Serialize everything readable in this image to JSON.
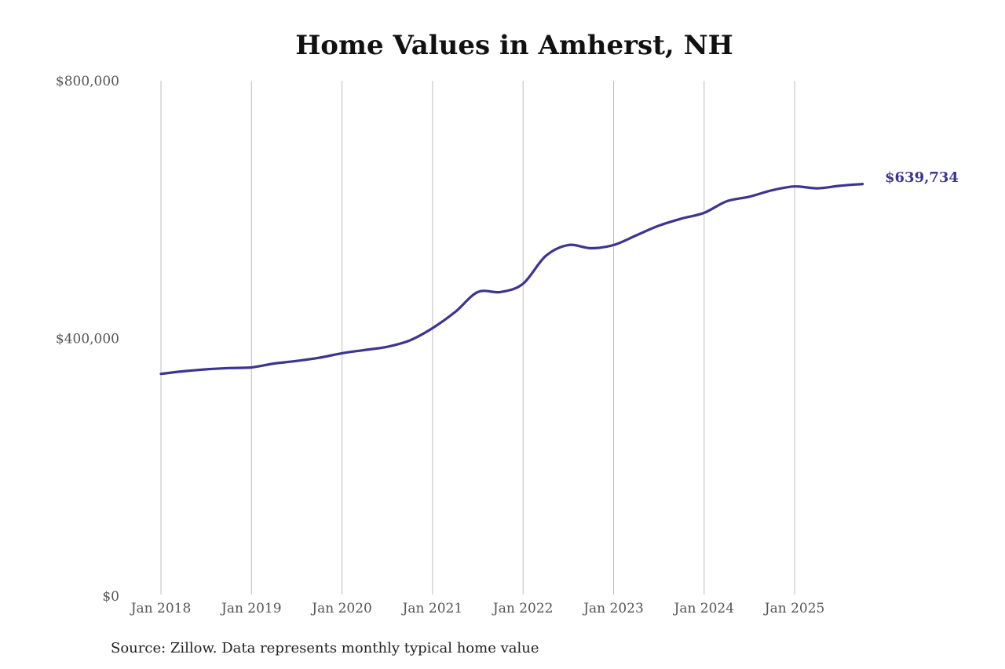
{
  "chart_data": {
    "type": "line",
    "title": "Home Values in Amherst, NH",
    "xlabel": "",
    "ylabel": "",
    "ylim": [
      0,
      800000
    ],
    "yticks": [
      0,
      400000,
      800000
    ],
    "ytick_labels": [
      "$0",
      "$400,000",
      "$800,000"
    ],
    "xtick_labels": [
      "Jan 2018",
      "Jan 2019",
      "Jan 2020",
      "Jan 2021",
      "Jan 2022",
      "Jan 2023",
      "Jan 2024",
      "Jan 2025"
    ],
    "grid": {
      "vertical": true,
      "horizontal": false
    },
    "legend": null,
    "line_color": "#3b3494",
    "series": [
      {
        "name": "Typical home value",
        "x": [
          "2018-01",
          "2018-04",
          "2018-07",
          "2018-10",
          "2019-01",
          "2019-04",
          "2019-07",
          "2019-10",
          "2020-01",
          "2020-04",
          "2020-07",
          "2020-10",
          "2021-01",
          "2021-04",
          "2021-07",
          "2021-10",
          "2022-01",
          "2022-04",
          "2022-07",
          "2022-10",
          "2023-01",
          "2023-04",
          "2023-07",
          "2023-10",
          "2024-01",
          "2024-04",
          "2024-07",
          "2024-10",
          "2025-01",
          "2025-04",
          "2025-07",
          "2025-10"
        ],
        "values": [
          345000,
          349000,
          352000,
          354000,
          355000,
          361000,
          365000,
          370000,
          377000,
          382000,
          387000,
          397000,
          416000,
          441000,
          472000,
          472000,
          485000,
          528000,
          545000,
          540000,
          545000,
          560000,
          575000,
          586000,
          595000,
          613000,
          620000,
          630000,
          636000,
          633000,
          637000,
          639734
        ]
      }
    ],
    "annotations": [
      {
        "text": "$639,734",
        "at": "2025-10",
        "value": 639734
      }
    ]
  },
  "title": "Home Values in Amherst, NH",
  "y_axis": {
    "labels": [
      "$0",
      "$400,000",
      "$800,000"
    ]
  },
  "x_axis": {
    "labels": [
      "Jan 2018",
      "Jan 2019",
      "Jan 2020",
      "Jan 2021",
      "Jan 2022",
      "Jan 2023",
      "Jan 2024",
      "Jan 2025"
    ]
  },
  "end_label": "$639,734",
  "source": "Source: Zillow. Data represents monthly typical home value",
  "colors": {
    "line": "#3b3494",
    "gridline": "#bdbdbd",
    "tick_text": "#555555",
    "title_text": "#111111"
  }
}
